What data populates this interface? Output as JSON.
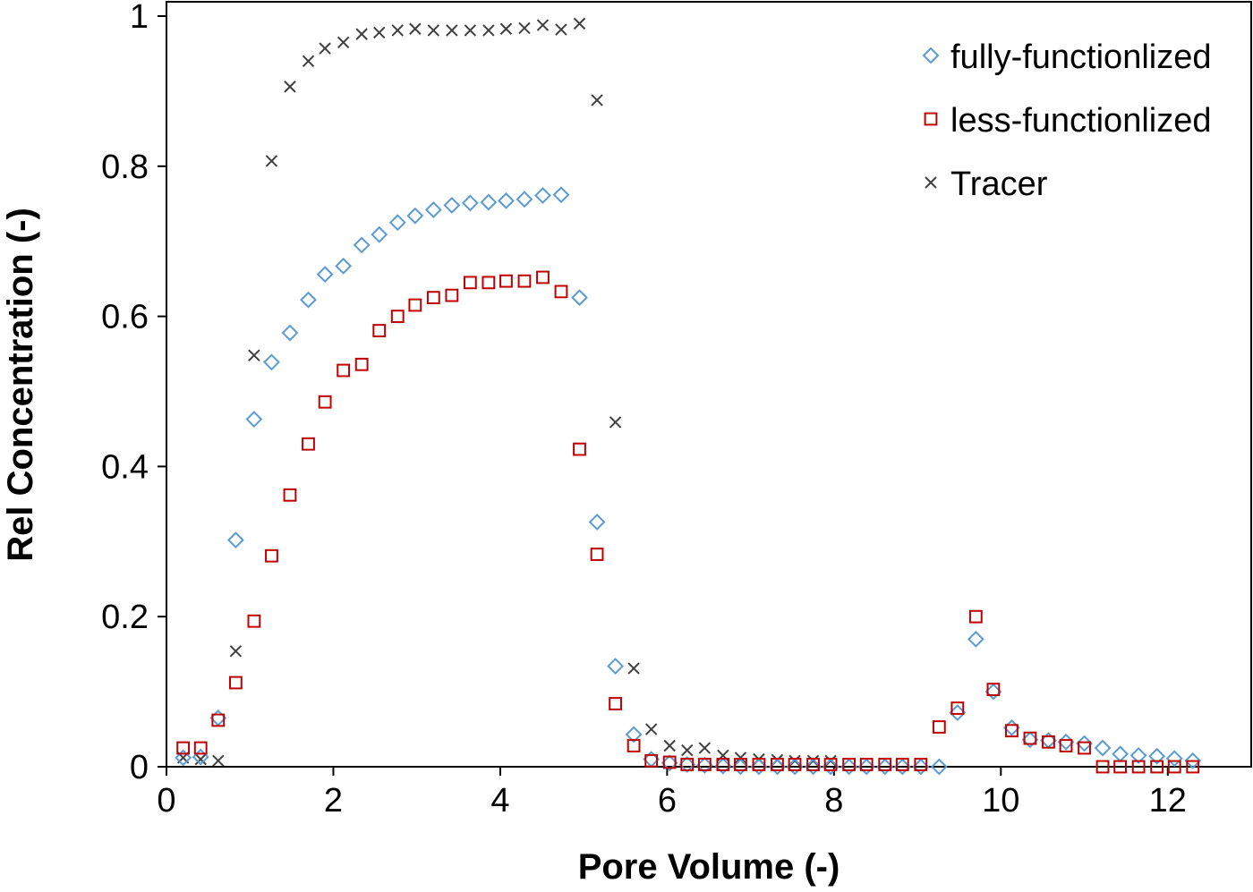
{
  "chart_data": {
    "type": "scatter",
    "title": "",
    "xlabel": "Pore Volume  (-)",
    "ylabel": "Rel Concentration  (-)",
    "xlim": [
      0,
      13
    ],
    "ylim": [
      0,
      1
    ],
    "xticks": [
      0,
      2,
      4,
      6,
      8,
      10,
      12
    ],
    "xtick_labels": [
      "0",
      "2",
      "4",
      "6",
      "8",
      "10",
      "12"
    ],
    "yticks": [
      0,
      0.2,
      0.4,
      0.6,
      0.8,
      1
    ],
    "ytick_labels": [
      "0",
      "0.2",
      "0.4",
      "0.6",
      "0.8",
      "1"
    ],
    "grid": false,
    "legend_position": "top-right",
    "series": [
      {
        "name": "fully-functionlized",
        "marker": "diamond",
        "color": "#5b9bd5",
        "x": [
          0.2,
          0.41,
          0.62,
          0.83,
          1.05,
          1.26,
          1.48,
          1.7,
          1.9,
          2.12,
          2.34,
          2.55,
          2.77,
          2.98,
          3.2,
          3.42,
          3.64,
          3.86,
          4.07,
          4.29,
          4.51,
          4.73,
          4.95,
          5.16,
          5.38,
          5.6,
          5.81,
          6.03,
          6.24,
          6.45,
          6.67,
          6.88,
          7.1,
          7.32,
          7.53,
          7.75,
          7.96,
          8.18,
          8.39,
          8.61,
          8.82,
          9.04,
          9.26,
          9.48,
          9.7,
          9.91,
          10.13,
          10.35,
          10.57,
          10.78,
          11.0,
          11.22,
          11.43,
          11.65,
          11.87,
          12.08,
          12.3
        ],
        "y": [
          0.012,
          0.013,
          0.065,
          0.302,
          0.463,
          0.539,
          0.578,
          0.622,
          0.656,
          0.667,
          0.695,
          0.709,
          0.725,
          0.734,
          0.742,
          0.748,
          0.751,
          0.752,
          0.754,
          0.756,
          0.761,
          0.762,
          0.625,
          0.326,
          0.134,
          0.043,
          0.01,
          0.005,
          0.003,
          0.002,
          0.001,
          0.0,
          0.0,
          0.0,
          0.0,
          0.0,
          0.0,
          0.0,
          0.0,
          0.0,
          0.0,
          0.0,
          0.0,
          0.072,
          0.17,
          0.1,
          0.052,
          0.036,
          0.035,
          0.033,
          0.031,
          0.025,
          0.017,
          0.015,
          0.014,
          0.011,
          0.008
        ]
      },
      {
        "name": "less-functionlized",
        "marker": "square",
        "color": "#c00000",
        "x": [
          0.2,
          0.41,
          0.62,
          0.83,
          1.05,
          1.26,
          1.48,
          1.7,
          1.9,
          2.12,
          2.34,
          2.55,
          2.77,
          2.98,
          3.2,
          3.42,
          3.64,
          3.86,
          4.07,
          4.29,
          4.51,
          4.73,
          4.95,
          5.16,
          5.38,
          5.6,
          5.81,
          6.03,
          6.24,
          6.45,
          6.67,
          6.88,
          7.1,
          7.32,
          7.53,
          7.75,
          7.96,
          8.18,
          8.39,
          8.61,
          8.82,
          9.04,
          9.26,
          9.48,
          9.7,
          9.91,
          10.13,
          10.35,
          10.57,
          10.78,
          11.0,
          11.22,
          11.43,
          11.65,
          11.87,
          12.08,
          12.3
        ],
        "y": [
          0.025,
          0.025,
          0.062,
          0.112,
          0.194,
          0.281,
          0.362,
          0.43,
          0.486,
          0.528,
          0.536,
          0.581,
          0.6,
          0.615,
          0.625,
          0.628,
          0.645,
          0.645,
          0.647,
          0.647,
          0.652,
          0.633,
          0.423,
          0.283,
          0.084,
          0.028,
          0.008,
          0.006,
          0.003,
          0.003,
          0.003,
          0.003,
          0.003,
          0.003,
          0.003,
          0.003,
          0.003,
          0.003,
          0.003,
          0.003,
          0.003,
          0.003,
          0.053,
          0.078,
          0.2,
          0.103,
          0.048,
          0.038,
          0.033,
          0.028,
          0.025,
          0.0,
          0.0,
          0.0,
          0.0,
          0.0,
          0.0
        ]
      },
      {
        "name": "Tracer",
        "marker": "x",
        "color": "#404040",
        "x": [
          0.2,
          0.41,
          0.62,
          0.83,
          1.05,
          1.26,
          1.48,
          1.7,
          1.9,
          2.12,
          2.34,
          2.55,
          2.77,
          2.98,
          3.2,
          3.42,
          3.64,
          3.86,
          4.07,
          4.29,
          4.51,
          4.73,
          4.95,
          5.16,
          5.38,
          5.6,
          5.81,
          6.03,
          6.24,
          6.45,
          6.67,
          6.88,
          7.1,
          7.32,
          7.53,
          7.75,
          7.96
        ],
        "y": [
          0.012,
          0.01,
          0.008,
          0.154,
          0.548,
          0.807,
          0.906,
          0.94,
          0.957,
          0.965,
          0.976,
          0.978,
          0.981,
          0.983,
          0.981,
          0.981,
          0.981,
          0.981,
          0.983,
          0.984,
          0.988,
          0.982,
          0.99,
          0.888,
          0.459,
          0.131,
          0.05,
          0.028,
          0.022,
          0.025,
          0.015,
          0.012,
          0.01,
          0.009,
          0.008,
          0.008,
          0.008
        ]
      }
    ]
  }
}
